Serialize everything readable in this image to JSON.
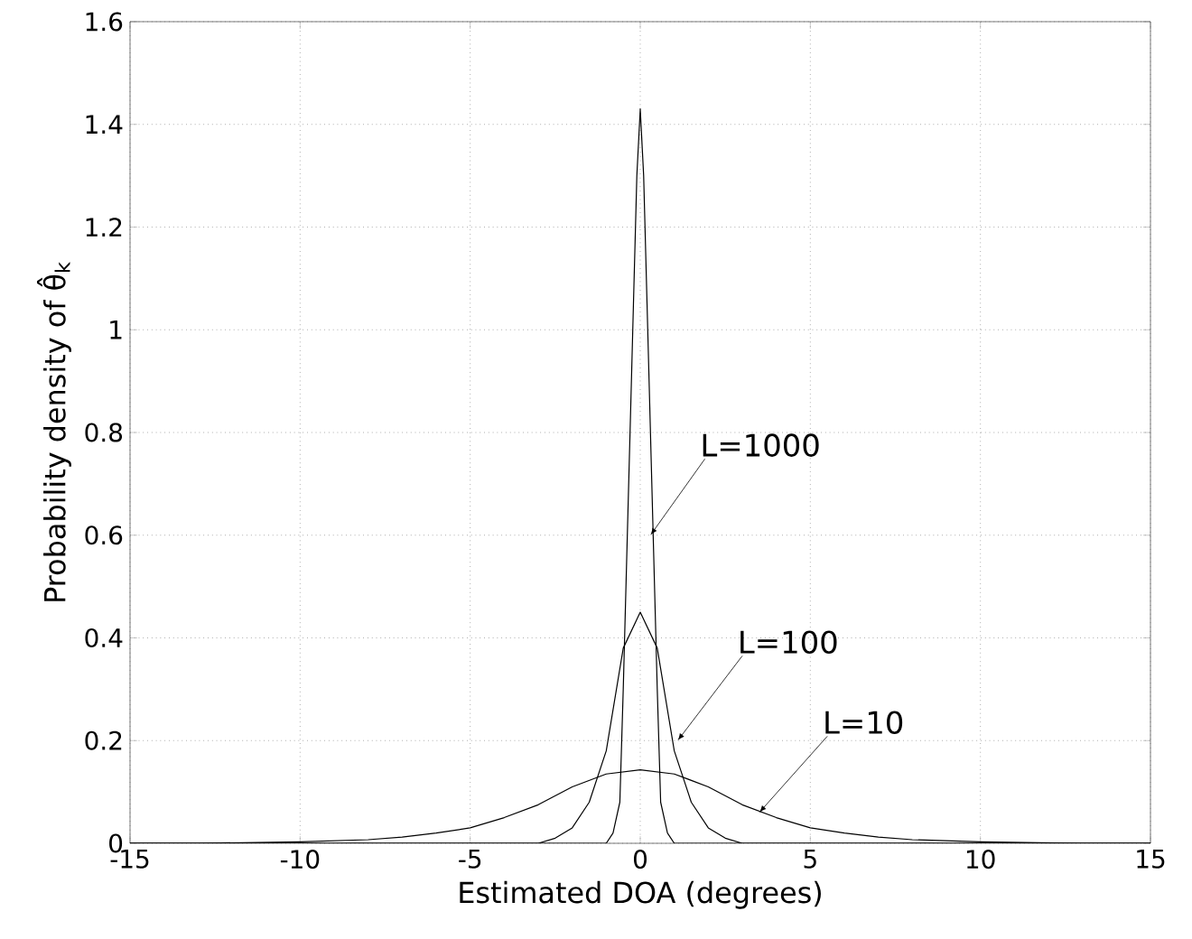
{
  "chart_data": {
    "type": "line",
    "xlabel": "Estimated DOA (degrees)",
    "ylabel": "Probability density of θ̂$_{k}$",
    "xlim": [
      -15,
      15
    ],
    "ylim": [
      0,
      1.6
    ],
    "xticks": [
      -15,
      -10,
      -5,
      0,
      5,
      10,
      15
    ],
    "yticks": [
      0,
      0.2,
      0.4,
      0.6,
      0.8,
      1,
      1.2,
      1.4,
      1.6
    ],
    "grid": true,
    "line_style": "solid",
    "marker": "none",
    "series": [
      {
        "color": "#000000",
        "x": [
          -15,
          -1,
          -0.8,
          -0.6,
          -0.5,
          -0.4,
          -0.3,
          -0.2,
          -0.1,
          0,
          0.1,
          0.2,
          0.3,
          0.4,
          0.5,
          0.6,
          0.8,
          1,
          15
        ],
        "values": [
          0,
          0,
          0.02,
          0.08,
          0.3,
          0.55,
          0.8,
          1.05,
          1.3,
          1.43,
          1.3,
          1.05,
          0.8,
          0.55,
          0.3,
          0.08,
          0.02,
          0,
          0
        ]
      },
      {
        "color": "#000000",
        "x": [
          -15,
          -3,
          -2.5,
          -2,
          -1.5,
          -1,
          -0.5,
          0,
          0.5,
          1,
          1.5,
          2,
          2.5,
          3,
          15
        ],
        "values": [
          0,
          0,
          0.01,
          0.03,
          0.08,
          0.18,
          0.38,
          0.45,
          0.38,
          0.18,
          0.08,
          0.03,
          0.01,
          0,
          0
        ]
      },
      {
        "color": "#000000",
        "x": [
          -15,
          -13,
          -10,
          -8,
          -7,
          -6,
          -5,
          -4,
          -3,
          -2,
          -1,
          0,
          1,
          2,
          3,
          4,
          5,
          6,
          7,
          8,
          10,
          13,
          15
        ],
        "values": [
          0,
          0,
          0.003,
          0.007,
          0.012,
          0.02,
          0.03,
          0.05,
          0.075,
          0.11,
          0.135,
          0.143,
          0.135,
          0.11,
          0.075,
          0.05,
          0.03,
          0.02,
          0.012,
          0.007,
          0.003,
          0,
          0
        ]
      }
    ],
    "annotations": [
      {
        "text": "L=1000",
        "x": 0.3,
        "y": 0.6
      },
      {
        "text": "L=100",
        "x": 1.1,
        "y": 0.2
      },
      {
        "text": "L=10",
        "x": 3.5,
        "y": 0.06
      }
    ]
  }
}
